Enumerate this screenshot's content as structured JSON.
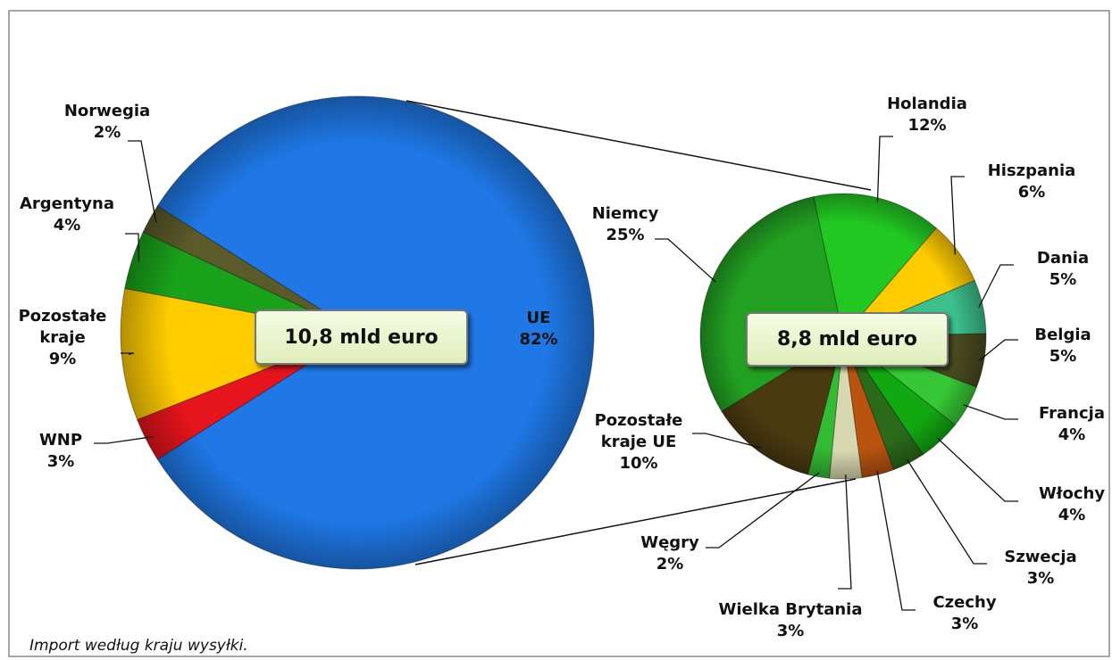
{
  "chart_data": [
    {
      "type": "pie",
      "center_label": "10,8 mld euro",
      "categories": [
        "UE",
        "WNP",
        "Pozostałe kraje",
        "Argentyna",
        "Norwegia"
      ],
      "values": [
        82,
        3,
        9,
        4,
        2
      ],
      "value_labels": [
        "82%",
        "3%",
        "9%",
        "4%",
        "2%"
      ],
      "colors": [
        "#1f78e6",
        "#e6141c",
        "#ffcc00",
        "#1aa21a",
        "#5a5a2a"
      ]
    },
    {
      "type": "pie",
      "center_label": "8,8 mld euro",
      "categories": [
        "Holandia",
        "Hiszpania",
        "Dania",
        "Belgia",
        "Francja",
        "Włochy",
        "Szwecja",
        "Czechy",
        "Wielka Brytania",
        "Węgry",
        "Pozostałe kraje UE",
        "Niemcy"
      ],
      "values": [
        12,
        6,
        5,
        5,
        4,
        4,
        3,
        3,
        3,
        2,
        10,
        25
      ],
      "value_labels": [
        "12%",
        "6%",
        "5%",
        "5%",
        "4%",
        "4%",
        "3%",
        "3%",
        "3%",
        "2%",
        "10%",
        "25%"
      ],
      "colors": [
        "#22c822",
        "#ffcc00",
        "#3cbf8c",
        "#4a4a20",
        "#36c836",
        "#12a812",
        "#2a6a1a",
        "#b85410",
        "#d8d8b0",
        "#33bb33",
        "#4a3a10",
        "#22a022"
      ]
    }
  ],
  "footnote": "Import według kraju wysyłki."
}
